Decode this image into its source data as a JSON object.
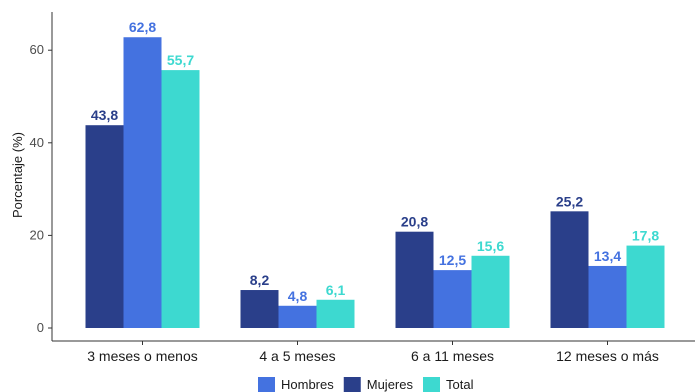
{
  "chart_data": {
    "type": "bar",
    "ylabel": "Porcentaje (%)",
    "xlabel": "",
    "ylim": [
      0,
      68
    ],
    "yticks": [
      0,
      20,
      40,
      60
    ],
    "yticks_labels": [
      "0",
      "20",
      "40",
      "60"
    ],
    "grid": false,
    "legend_position": "bottom",
    "categories": [
      "3 meses o menos",
      "4 a 5 meses",
      "6 a 11 meses",
      "12 meses o más"
    ],
    "bar_order": [
      "Mujeres",
      "Hombres",
      "Total"
    ],
    "series": [
      {
        "name": "Hombres",
        "color": "#4472e0",
        "values": [
          62.8,
          4.8,
          12.5,
          13.4
        ],
        "labels": [
          "62,8",
          "4,8",
          "12,5",
          "13,4"
        ]
      },
      {
        "name": "Mujeres",
        "color": "#2a3f8a",
        "values": [
          43.8,
          8.2,
          20.8,
          25.2
        ],
        "labels": [
          "43,8",
          "8,2",
          "20,8",
          "25,2"
        ]
      },
      {
        "name": "Total",
        "color": "#3dd9d0",
        "values": [
          55.7,
          6.1,
          15.6,
          17.8
        ],
        "labels": [
          "55,7",
          "6,1",
          "15,6",
          "17,8"
        ]
      }
    ]
  }
}
